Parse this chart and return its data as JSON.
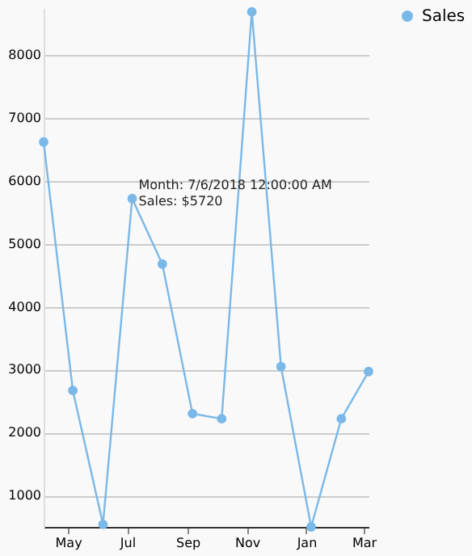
{
  "chart_data": {
    "type": "line",
    "x": [
      "2018-04-06",
      "2018-05-06",
      "2018-06-06",
      "2018-07-06",
      "2018-08-06",
      "2018-09-06",
      "2018-10-06",
      "2018-11-06",
      "2018-12-06",
      "2019-01-06",
      "2019-02-06",
      "2019-03-06"
    ],
    "series": [
      {
        "name": "Sales",
        "color": "#7ab8e8",
        "values": [
          6620,
          2670,
          540,
          5720,
          4680,
          2300,
          2220,
          8690,
          3050,
          500,
          2220,
          2970
        ]
      }
    ],
    "xlim": [
      "2018-04-06",
      "2019-03-06"
    ],
    "xticks": [
      {
        "value": "2018-05-01",
        "label": "May"
      },
      {
        "value": "2018-07-01",
        "label": "Jul"
      },
      {
        "value": "2018-09-01",
        "label": "Sep"
      },
      {
        "value": "2018-11-01",
        "label": "Nov"
      },
      {
        "value": "2019-01-01",
        "label": "Jan"
      },
      {
        "value": "2019-03-01",
        "label": "Mar"
      }
    ],
    "ylim": [
      500,
      8750
    ],
    "yticks": [
      1000,
      2000,
      3000,
      4000,
      5000,
      6000,
      7000,
      8000
    ],
    "annotations": [
      {
        "text": "Month: 7/6/2018 12:00:00 AM\nSales: $5720",
        "x": "2018-07-06",
        "y": 5720
      }
    ],
    "grid": "y",
    "legend": "right",
    "marker": "circle",
    "line_style": "solid"
  }
}
